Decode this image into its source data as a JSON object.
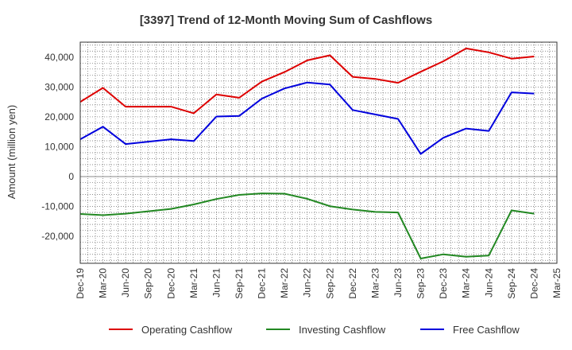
{
  "chart_data": {
    "type": "line",
    "title": "[3397]  Trend of 12-Month Moving Sum of Cashflows",
    "xlabel": "",
    "ylabel": "Amount (million yen)",
    "ylim": [
      -29000,
      45000
    ],
    "yticks": [
      -20000,
      -10000,
      0,
      10000,
      20000,
      30000,
      40000
    ],
    "ytick_labels": [
      "-20,000",
      "-10,000",
      "0",
      "10,000",
      "20,000",
      "30,000",
      "40,000"
    ],
    "x_tick_labels": [
      "Dec-19",
      "Mar-20",
      "Jun-20",
      "Sep-20",
      "Dec-20",
      "Mar-21",
      "Jun-21",
      "Sep-21",
      "Dec-21",
      "Mar-22",
      "Jun-22",
      "Sep-22",
      "Dec-22",
      "Mar-23",
      "Jun-23",
      "Sep-23",
      "Dec-23",
      "Mar-24",
      "Jun-24",
      "Sep-24",
      "Dec-24",
      "Mar-25"
    ],
    "grid": true,
    "legend_position": "bottom",
    "series": [
      {
        "name": "Operating Cashflow",
        "color": "#dd0000",
        "values": [
          25000,
          29700,
          23400,
          23400,
          23400,
          21200,
          27500,
          26400,
          31800,
          35000,
          38900,
          40600,
          33400,
          32700,
          31400,
          35100,
          38600,
          42900,
          41600,
          39500,
          40200
        ]
      },
      {
        "name": "Investing Cashflow",
        "color": "#228822",
        "values": [
          -12500,
          -12900,
          -12400,
          -11600,
          -10800,
          -9300,
          -7500,
          -6100,
          -5600,
          -5700,
          -7400,
          -9900,
          -11000,
          -11800,
          -12000,
          -27400,
          -26000,
          -26800,
          -26400,
          -11300,
          -12400
        ]
      },
      {
        "name": "Free Cashflow",
        "color": "#0000dd",
        "values": [
          12500,
          16700,
          10900,
          11700,
          12500,
          11900,
          20100,
          20300,
          26100,
          29500,
          31500,
          30800,
          22300,
          20800,
          19300,
          7600,
          13000,
          16100,
          15300,
          28200,
          27800
        ]
      }
    ]
  }
}
